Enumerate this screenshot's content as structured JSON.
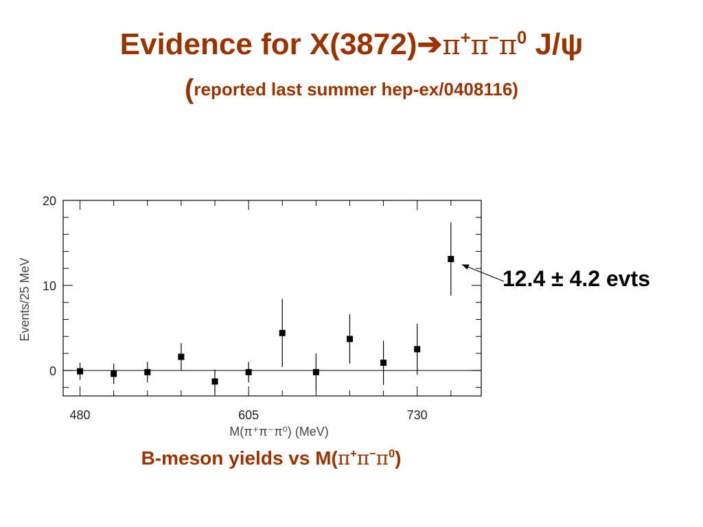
{
  "slide": {
    "title_main": "Evidence for X(3872)",
    "title_arrow": "➔",
    "title_pi": "π",
    "title_plus": "+",
    "title_minus": "−",
    "title_zero": "0",
    "title_jpsi": " J/ψ",
    "subtitle_open": "(",
    "subtitle_text": "reported last summer hep-ex/0408116)",
    "caption_prefix": "B-meson yields vs M(",
    "caption_pi": "π",
    "caption_plus": "+",
    "caption_minus": "−",
    "caption_zero": "0",
    "caption_close": ")",
    "annotation": "12.4 ± 4.2 evts"
  },
  "colors": {
    "title": "#993300",
    "caption": "#993300",
    "annotation": "#000000",
    "axis": "#000000",
    "points": "#000000"
  },
  "chart_data": {
    "type": "scatter",
    "x_axis_label": "M(π⁺π⁻π⁰) (MeV)",
    "y_axis_label": "Events/25 MeV",
    "xlim": [
      467.5,
      777.5
    ],
    "ylim": [
      -3,
      20
    ],
    "x_ticks": [
      480,
      605,
      730
    ],
    "y_ticks": [
      0,
      10,
      20
    ],
    "zero_line": true,
    "points": [
      {
        "x": 480,
        "y": -0.1,
        "err": 1.0
      },
      {
        "x": 505,
        "y": -0.4,
        "err": 1.2
      },
      {
        "x": 530,
        "y": -0.2,
        "err": 1.2
      },
      {
        "x": 555,
        "y": 1.6,
        "err": 1.6
      },
      {
        "x": 580,
        "y": -1.3,
        "err": 1.4
      },
      {
        "x": 605,
        "y": -0.2,
        "err": 1.2
      },
      {
        "x": 630,
        "y": 4.4,
        "err": 4.0
      },
      {
        "x": 655,
        "y": -0.2,
        "err": 2.2
      },
      {
        "x": 680,
        "y": 3.7,
        "err": 2.9
      },
      {
        "x": 705,
        "y": 0.9,
        "err": 2.6
      },
      {
        "x": 730,
        "y": 2.5,
        "err": 3.0
      },
      {
        "x": 755,
        "y": 13.1,
        "err": 4.3
      }
    ],
    "annotation_point_index": 11
  }
}
